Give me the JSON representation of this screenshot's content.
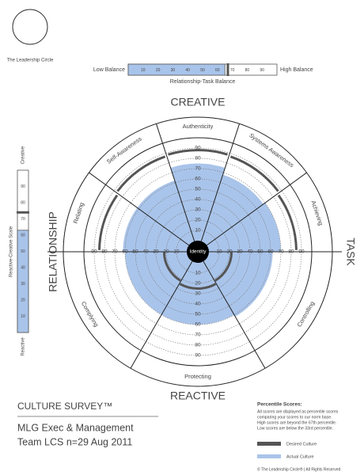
{
  "logo": {
    "text": "The Leadership Circle"
  },
  "balance": {
    "low_label": "Low Balance",
    "high_label": "High Balance",
    "title": "Relationship-Task Balance",
    "ticks": [
      10,
      20,
      30,
      40,
      50,
      60,
      70,
      80,
      90
    ],
    "actual": 65,
    "desired": 67
  },
  "vertical_scale": {
    "title": "Reactive-Creative Scale",
    "top_label": "Creative",
    "bottom_label": "Reactive",
    "ticks": [
      10,
      20,
      30,
      40,
      50,
      60,
      70,
      80,
      90
    ],
    "actual": 63,
    "desired": 74
  },
  "circle": {
    "top": "CREATIVE",
    "bottom": "REACTIVE",
    "left": "RELATIONSHIP",
    "right": "TASK",
    "center": "Identity",
    "ticks": [
      10,
      20,
      30,
      40,
      50,
      60,
      70,
      80,
      90
    ],
    "creative_sectors": [
      {
        "name": "Relating",
        "actual": 62,
        "desired": 85
      },
      {
        "name": "Self-Awareness",
        "actual": 62,
        "desired": 87
      },
      {
        "name": "Authenticity",
        "actual": 75,
        "desired": 88
      },
      {
        "name": "Systems Awareness",
        "actual": 68,
        "desired": 87
      },
      {
        "name": "Achieving",
        "actual": 70,
        "desired": 85
      }
    ],
    "reactive_sectors": [
      {
        "name": "Controlling",
        "actual": 62,
        "desired": 22
      },
      {
        "name": "Protecting",
        "actual": 60,
        "desired": 25
      },
      {
        "name": "Complying",
        "actual": 60,
        "desired": 22
      }
    ],
    "actual_color": "#a9c4ea",
    "desired_color": "#555555"
  },
  "footer": {
    "survey": "CULTURE SURVEY™",
    "team_lines": [
      "MLG Exec & Management",
      "Team LCS n=29 Aug 2011"
    ],
    "percentile_title": "Percentile Scores:",
    "percentile_lines": [
      "All scores are displayed as percentile scores",
      "comparing your scores to our norm base.",
      "High scores are beyond the 67th percentile.",
      "Low scores are below the 33rd percentile."
    ],
    "legend": [
      {
        "label": "Desired Culture"
      },
      {
        "label": "Actual Culture"
      }
    ],
    "copyright": "© The Leadership Circle® | All Rights Reserved"
  }
}
